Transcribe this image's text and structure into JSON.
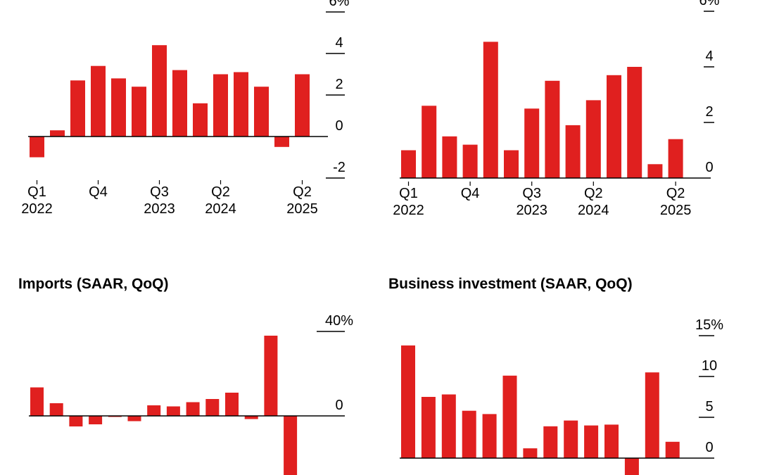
{
  "colors": {
    "bar": "#e0201f",
    "axis": "#000000",
    "text": "#000000",
    "background": "#ffffff"
  },
  "chart_data": [
    {
      "type": "bar",
      "title": "",
      "unit": "%",
      "categories": [
        "Q1 2022",
        "Q2 2022",
        "Q3 2022",
        "Q4 2022",
        "Q1 2023",
        "Q2 2023",
        "Q3 2023",
        "Q4 2023",
        "Q1 2024",
        "Q2 2024",
        "Q3 2024",
        "Q4 2024",
        "Q1 2025",
        "Q2 2025"
      ],
      "values": [
        -1.0,
        0.3,
        2.7,
        3.4,
        2.8,
        2.4,
        4.4,
        3.2,
        1.6,
        3.0,
        3.1,
        2.4,
        -0.5,
        3.0
      ],
      "y_ticks": [
        {
          "value": 6,
          "label": "6%"
        },
        {
          "value": 4,
          "label": "4"
        },
        {
          "value": 2,
          "label": "2"
        },
        {
          "value": 0,
          "label": "0"
        },
        {
          "value": -2,
          "label": "-2"
        }
      ],
      "x_labels": [
        {
          "index": 0,
          "lines": [
            "Q1",
            "2022"
          ]
        },
        {
          "index": 3,
          "lines": [
            "Q4",
            ""
          ]
        },
        {
          "index": 6,
          "lines": [
            "Q3",
            "2023"
          ]
        },
        {
          "index": 9,
          "lines": [
            "Q2",
            "2024"
          ]
        },
        {
          "index": 13,
          "lines": [
            "Q2",
            "2025"
          ]
        }
      ]
    },
    {
      "type": "bar",
      "title": "",
      "unit": "%",
      "categories": [
        "Q1 2022",
        "Q2 2022",
        "Q3 2022",
        "Q4 2022",
        "Q1 2023",
        "Q2 2023",
        "Q3 2023",
        "Q4 2023",
        "Q1 2024",
        "Q2 2024",
        "Q3 2024",
        "Q4 2024",
        "Q1 2025",
        "Q2 2025"
      ],
      "values": [
        1.0,
        2.6,
        1.5,
        1.2,
        4.9,
        1.0,
        2.5,
        3.5,
        1.9,
        2.8,
        3.7,
        4.0,
        0.5,
        1.4
      ],
      "y_ticks": [
        {
          "value": 6,
          "label": "6%"
        },
        {
          "value": 4,
          "label": "4"
        },
        {
          "value": 2,
          "label": "2"
        },
        {
          "value": 0,
          "label": "0"
        }
      ],
      "x_labels": [
        {
          "index": 0,
          "lines": [
            "Q1",
            "2022"
          ]
        },
        {
          "index": 3,
          "lines": [
            "Q4",
            ""
          ]
        },
        {
          "index": 6,
          "lines": [
            "Q3",
            "2023"
          ]
        },
        {
          "index": 9,
          "lines": [
            "Q2",
            "2024"
          ]
        },
        {
          "index": 13,
          "lines": [
            "Q2",
            "2025"
          ]
        }
      ]
    },
    {
      "type": "bar",
      "title": "Imports (SAAR, QoQ)",
      "unit": "%",
      "categories": [
        "Q1 2022",
        "Q2 2022",
        "Q3 2022",
        "Q4 2022",
        "Q1 2023",
        "Q2 2023",
        "Q3 2023",
        "Q4 2023",
        "Q1 2024",
        "Q2 2024",
        "Q3 2024",
        "Q4 2024",
        "Q1 2025",
        "Q2 2025"
      ],
      "values": [
        13.5,
        6.0,
        -5.0,
        -4.0,
        -0.5,
        -2.5,
        5.0,
        4.5,
        6.5,
        8.0,
        11.0,
        -1.5,
        38.0,
        -30.0
      ],
      "y_ticks": [
        {
          "value": 40,
          "label": "40%"
        },
        {
          "value": 0,
          "label": "0"
        }
      ],
      "x_labels": []
    },
    {
      "type": "bar",
      "title": "Business investment (SAAR, QoQ)",
      "unit": "%",
      "categories": [
        "Q1 2022",
        "Q2 2022",
        "Q3 2022",
        "Q4 2022",
        "Q1 2023",
        "Q2 2023",
        "Q3 2023",
        "Q4 2023",
        "Q1 2024",
        "Q2 2024",
        "Q3 2024",
        "Q4 2024",
        "Q1 2025",
        "Q2 2025"
      ],
      "values": [
        13.8,
        7.5,
        7.8,
        5.8,
        5.4,
        10.1,
        1.2,
        3.9,
        4.6,
        4.0,
        4.1,
        -2.5,
        10.5,
        2.0
      ],
      "y_ticks": [
        {
          "value": 15,
          "label": "15%"
        },
        {
          "value": 10,
          "label": "10"
        },
        {
          "value": 5,
          "label": "5"
        },
        {
          "value": 0,
          "label": "0"
        }
      ],
      "x_labels": []
    }
  ]
}
